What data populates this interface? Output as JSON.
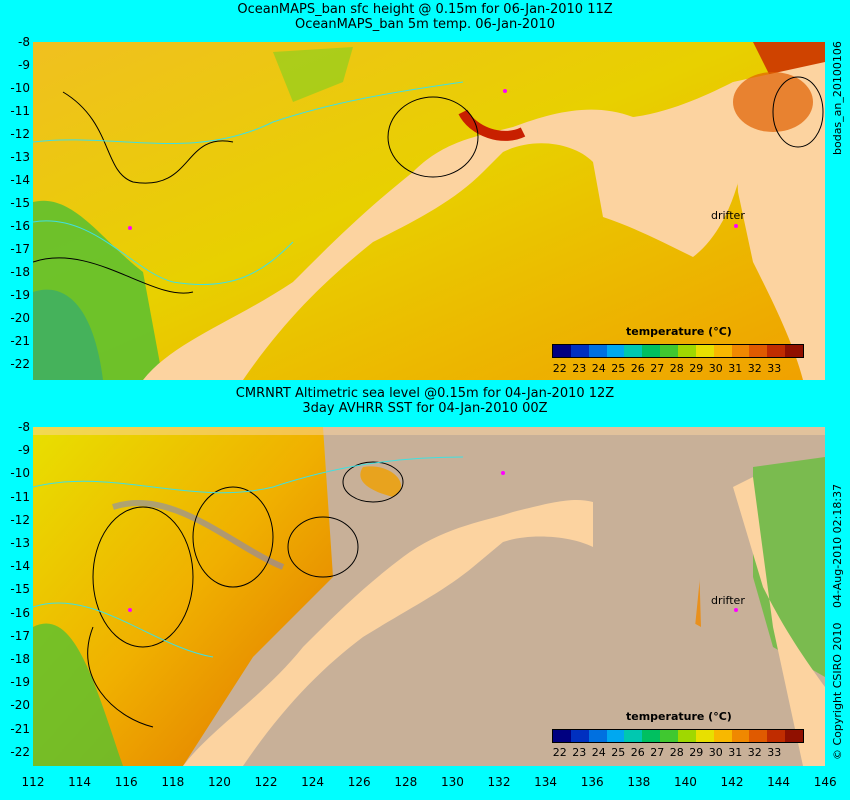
{
  "top": {
    "title1": "OceanMAPS_ban sfc height @ 0.15m for 06-Jan-2010 11Z",
    "title2": "OceanMAPS_ban 5m temp. 06-Jan-2010",
    "side_label": "bodas_an_20100106",
    "drifter_label": "drifter",
    "legend_title": "temperature (°C)"
  },
  "bottom": {
    "title1": "CMRNRT Altimetric sea level  @0.15m  for 04-Jan-2010 12Z",
    "title2": "3day AVHRR SST for 04-Jan-2010 00Z",
    "side_label": "04-Aug-2010 02:18:37",
    "copyright": "© Copyright CSIRO 2010",
    "drifter_label": "drifter",
    "legend_title": "temperature (°C)"
  },
  "axes": {
    "y_ticks": [
      "-8",
      "-9",
      "-10",
      "-11",
      "-12",
      "-13",
      "-14",
      "-15",
      "-16",
      "-17",
      "-18",
      "-19",
      "-20",
      "-21",
      "-22"
    ],
    "x_ticks": [
      "112",
      "114",
      "116",
      "118",
      "120",
      "122",
      "124",
      "126",
      "128",
      "130",
      "132",
      "134",
      "136",
      "138",
      "140",
      "142",
      "144",
      "146"
    ]
  },
  "colorbar": {
    "ticks": [
      "22",
      "23",
      "24",
      "25",
      "26",
      "27",
      "28",
      "29",
      "30",
      "31",
      "32",
      "33"
    ],
    "colors": [
      "#000080",
      "#0030c0",
      "#0070e0",
      "#00a8f0",
      "#00c8b0",
      "#00c060",
      "#40c830",
      "#a0d800",
      "#e8e000",
      "#f8b800",
      "#f08800",
      "#e05a00",
      "#c02c00",
      "#901000"
    ]
  },
  "colors": {
    "background": "#00ffff",
    "land": "#fcd3a0",
    "land_mask": "#c8b098",
    "contour": "#000000",
    "isobath": "#40e0e0",
    "drifter": "#ff00ff"
  }
}
